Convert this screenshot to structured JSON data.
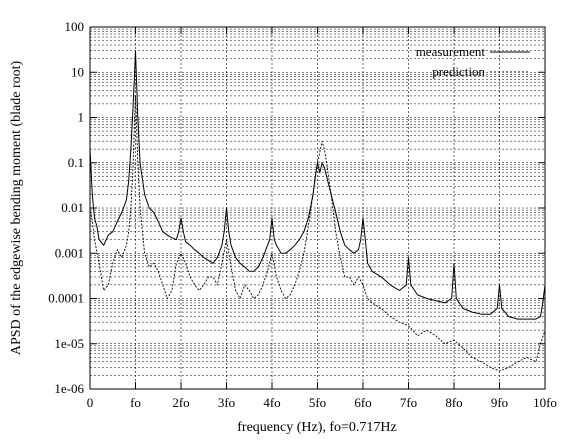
{
  "chart_data": {
    "type": "line",
    "title": "",
    "xlabel": "frequency (Hz),  fo=0.717Hz",
    "ylabel": "APSD of the edgewise bending moment (blade root)",
    "xlim": [
      0,
      10
    ],
    "ylim": [
      1e-06,
      100
    ],
    "y_scale": "log",
    "grid": "major and minor (dashed)",
    "legend_position": "top-right",
    "x_tick_labels": [
      "0",
      "fo",
      "2fo",
      "3fo",
      "4fo",
      "5fo",
      "6fo",
      "7fo",
      "8fo",
      "9fo",
      "10fo"
    ],
    "y_tick_labels": [
      "1e-06",
      "1e-05",
      "0.0001",
      "0.001",
      "0.01",
      "0.1",
      "1",
      "10",
      "100"
    ],
    "series": [
      {
        "name": "measurement",
        "line": "solid",
        "x": [
          0,
          0.05,
          0.1,
          0.15,
          0.2,
          0.3,
          0.4,
          0.5,
          0.6,
          0.7,
          0.8,
          0.85,
          0.9,
          0.95,
          0.98,
          1.0,
          1.02,
          1.05,
          1.1,
          1.2,
          1.3,
          1.4,
          1.5,
          1.6,
          1.7,
          1.8,
          1.9,
          1.95,
          2.0,
          2.05,
          2.1,
          2.2,
          2.3,
          2.4,
          2.5,
          2.6,
          2.7,
          2.8,
          2.9,
          2.95,
          3.0,
          3.05,
          3.1,
          3.2,
          3.3,
          3.4,
          3.5,
          3.6,
          3.7,
          3.8,
          3.9,
          3.95,
          4.0,
          4.05,
          4.1,
          4.2,
          4.3,
          4.4,
          4.5,
          4.6,
          4.7,
          4.8,
          4.9,
          4.95,
          5.0,
          5.05,
          5.1,
          5.15,
          5.2,
          5.3,
          5.4,
          5.5,
          5.6,
          5.7,
          5.8,
          5.9,
          5.95,
          6.0,
          6.05,
          6.1,
          6.2,
          6.4,
          6.6,
          6.8,
          6.95,
          7.0,
          7.05,
          7.2,
          7.4,
          7.6,
          7.8,
          7.95,
          8.0,
          8.05,
          8.2,
          8.4,
          8.6,
          8.8,
          8.95,
          9.0,
          9.05,
          9.2,
          9.4,
          9.6,
          9.8,
          9.9,
          9.95,
          10.0
        ],
        "y": [
          0.2,
          0.02,
          0.006,
          0.004,
          0.002,
          0.0015,
          0.0025,
          0.003,
          0.005,
          0.008,
          0.015,
          0.04,
          0.2,
          2.0,
          10,
          30,
          8,
          1.0,
          0.1,
          0.02,
          0.01,
          0.008,
          0.005,
          0.003,
          0.0025,
          0.0022,
          0.002,
          0.003,
          0.006,
          0.003,
          0.0018,
          0.0015,
          0.0012,
          0.001,
          0.0008,
          0.0007,
          0.0006,
          0.0008,
          0.0015,
          0.003,
          0.01,
          0.003,
          0.0015,
          0.0008,
          0.0006,
          0.0005,
          0.0004,
          0.0004,
          0.0005,
          0.0008,
          0.0015,
          0.002,
          0.006,
          0.002,
          0.0015,
          0.001,
          0.001,
          0.0012,
          0.0015,
          0.002,
          0.003,
          0.006,
          0.02,
          0.05,
          0.1,
          0.06,
          0.1,
          0.08,
          0.05,
          0.02,
          0.008,
          0.003,
          0.0015,
          0.0012,
          0.001,
          0.0012,
          0.002,
          0.006,
          0.002,
          0.0006,
          0.0004,
          0.0003,
          0.0002,
          0.00015,
          0.0002,
          0.0008,
          0.0002,
          0.00012,
          0.0001,
          9e-05,
          8e-05,
          0.0001,
          0.0006,
          0.0001,
          6e-05,
          5e-05,
          4.5e-05,
          4.5e-05,
          6e-05,
          0.0002,
          6e-05,
          4e-05,
          3.5e-05,
          3.5e-05,
          3.5e-05,
          4e-05,
          8e-05,
          0.0002
        ]
      },
      {
        "name": "prediction",
        "line": "dashed",
        "x": [
          0,
          0.05,
          0.1,
          0.2,
          0.3,
          0.4,
          0.5,
          0.6,
          0.7,
          0.8,
          0.85,
          0.9,
          0.95,
          0.98,
          1.0,
          1.02,
          1.05,
          1.1,
          1.2,
          1.3,
          1.4,
          1.5,
          1.6,
          1.7,
          1.8,
          1.9,
          2.0,
          2.1,
          2.2,
          2.3,
          2.4,
          2.5,
          2.6,
          2.7,
          2.8,
          2.9,
          3.0,
          3.1,
          3.2,
          3.3,
          3.4,
          3.5,
          3.6,
          3.7,
          3.8,
          3.9,
          4.0,
          4.1,
          4.2,
          4.3,
          4.4,
          4.5,
          4.6,
          4.7,
          4.8,
          4.9,
          5.0,
          5.1,
          5.15,
          5.2,
          5.3,
          5.4,
          5.5,
          5.6,
          5.7,
          5.8,
          5.9,
          6.0,
          6.1,
          6.2,
          6.4,
          6.6,
          6.8,
          7.0,
          7.2,
          7.4,
          7.6,
          7.8,
          8.0,
          8.2,
          8.4,
          8.6,
          8.8,
          9.0,
          9.2,
          9.4,
          9.6,
          9.8,
          9.9,
          10.0
        ],
        "y": [
          0.01,
          0.005,
          0.002,
          0.0006,
          0.00015,
          0.0002,
          0.0006,
          0.0012,
          0.0008,
          0.0015,
          0.003,
          0.01,
          0.1,
          1.0,
          3.0,
          1.0,
          0.1,
          0.01,
          0.001,
          0.0005,
          0.0006,
          0.0004,
          0.0002,
          0.0001,
          0.00015,
          0.0006,
          0.001,
          0.0006,
          0.0003,
          0.0002,
          0.00015,
          0.0002,
          0.0003,
          0.0003,
          0.0002,
          0.0006,
          0.002,
          0.0005,
          0.00015,
          0.0001,
          0.0002,
          0.00015,
          0.0001,
          0.00012,
          0.0002,
          0.0004,
          0.001,
          0.0003,
          0.00015,
          0.0001,
          0.00012,
          0.0002,
          0.0004,
          0.001,
          0.004,
          0.02,
          0.1,
          0.3,
          0.2,
          0.1,
          0.02,
          0.003,
          0.0008,
          0.0003,
          0.0003,
          0.0002,
          0.0003,
          0.0002,
          0.0001,
          8e-05,
          6e-05,
          4e-05,
          3e-05,
          2.5e-05,
          1.5e-05,
          2e-05,
          1.5e-05,
          1e-05,
          1.2e-05,
          8e-06,
          5e-06,
          4e-06,
          3e-06,
          2.5e-06,
          3e-06,
          4e-06,
          5e-06,
          4e-06,
          1e-05,
          2e-05
        ]
      }
    ]
  }
}
